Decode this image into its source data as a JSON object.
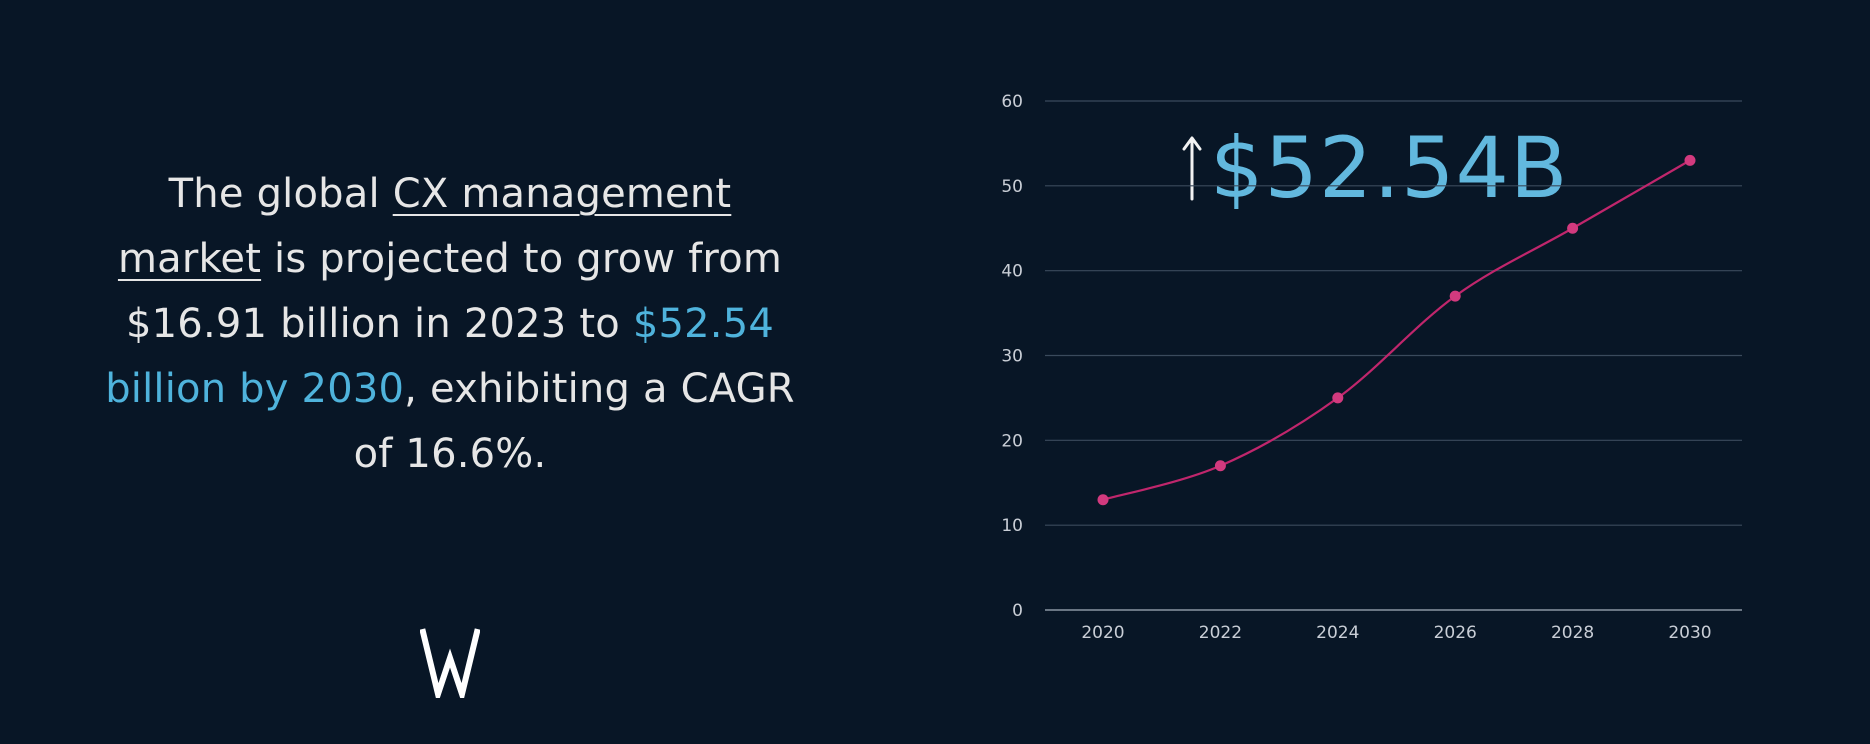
{
  "headline": {
    "t1": "The global ",
    "link": "CX management market",
    "t2": " is projected to grow from $16.91 billion in 2023 to ",
    "highlight": "$52.54 billion by 2030",
    "t3": ", exhibiting a CAGR of 16.6%."
  },
  "callout": {
    "value": "$52.54B",
    "icon": "up-arrow-icon"
  },
  "logo": {
    "letter": "W"
  },
  "colors": {
    "background": "#081626",
    "text": "#e6e6e6",
    "highlight": "#4fb3dc",
    "line": "#c0266c",
    "grid": "#3a4a5c"
  },
  "chart_data": {
    "type": "line",
    "x": [
      2020,
      2022,
      2024,
      2026,
      2028,
      2030
    ],
    "series": [
      {
        "values": [
          13,
          17,
          25,
          37,
          45,
          53
        ]
      }
    ],
    "xticks": [
      "2020",
      "2022",
      "2024",
      "2026",
      "2028",
      "2030"
    ],
    "yticks": [
      "0",
      "10",
      "20",
      "30",
      "40",
      "50",
      "60"
    ],
    "ylim": [
      0,
      60
    ],
    "grid": true,
    "title": "",
    "xlabel": "",
    "ylabel": ""
  }
}
